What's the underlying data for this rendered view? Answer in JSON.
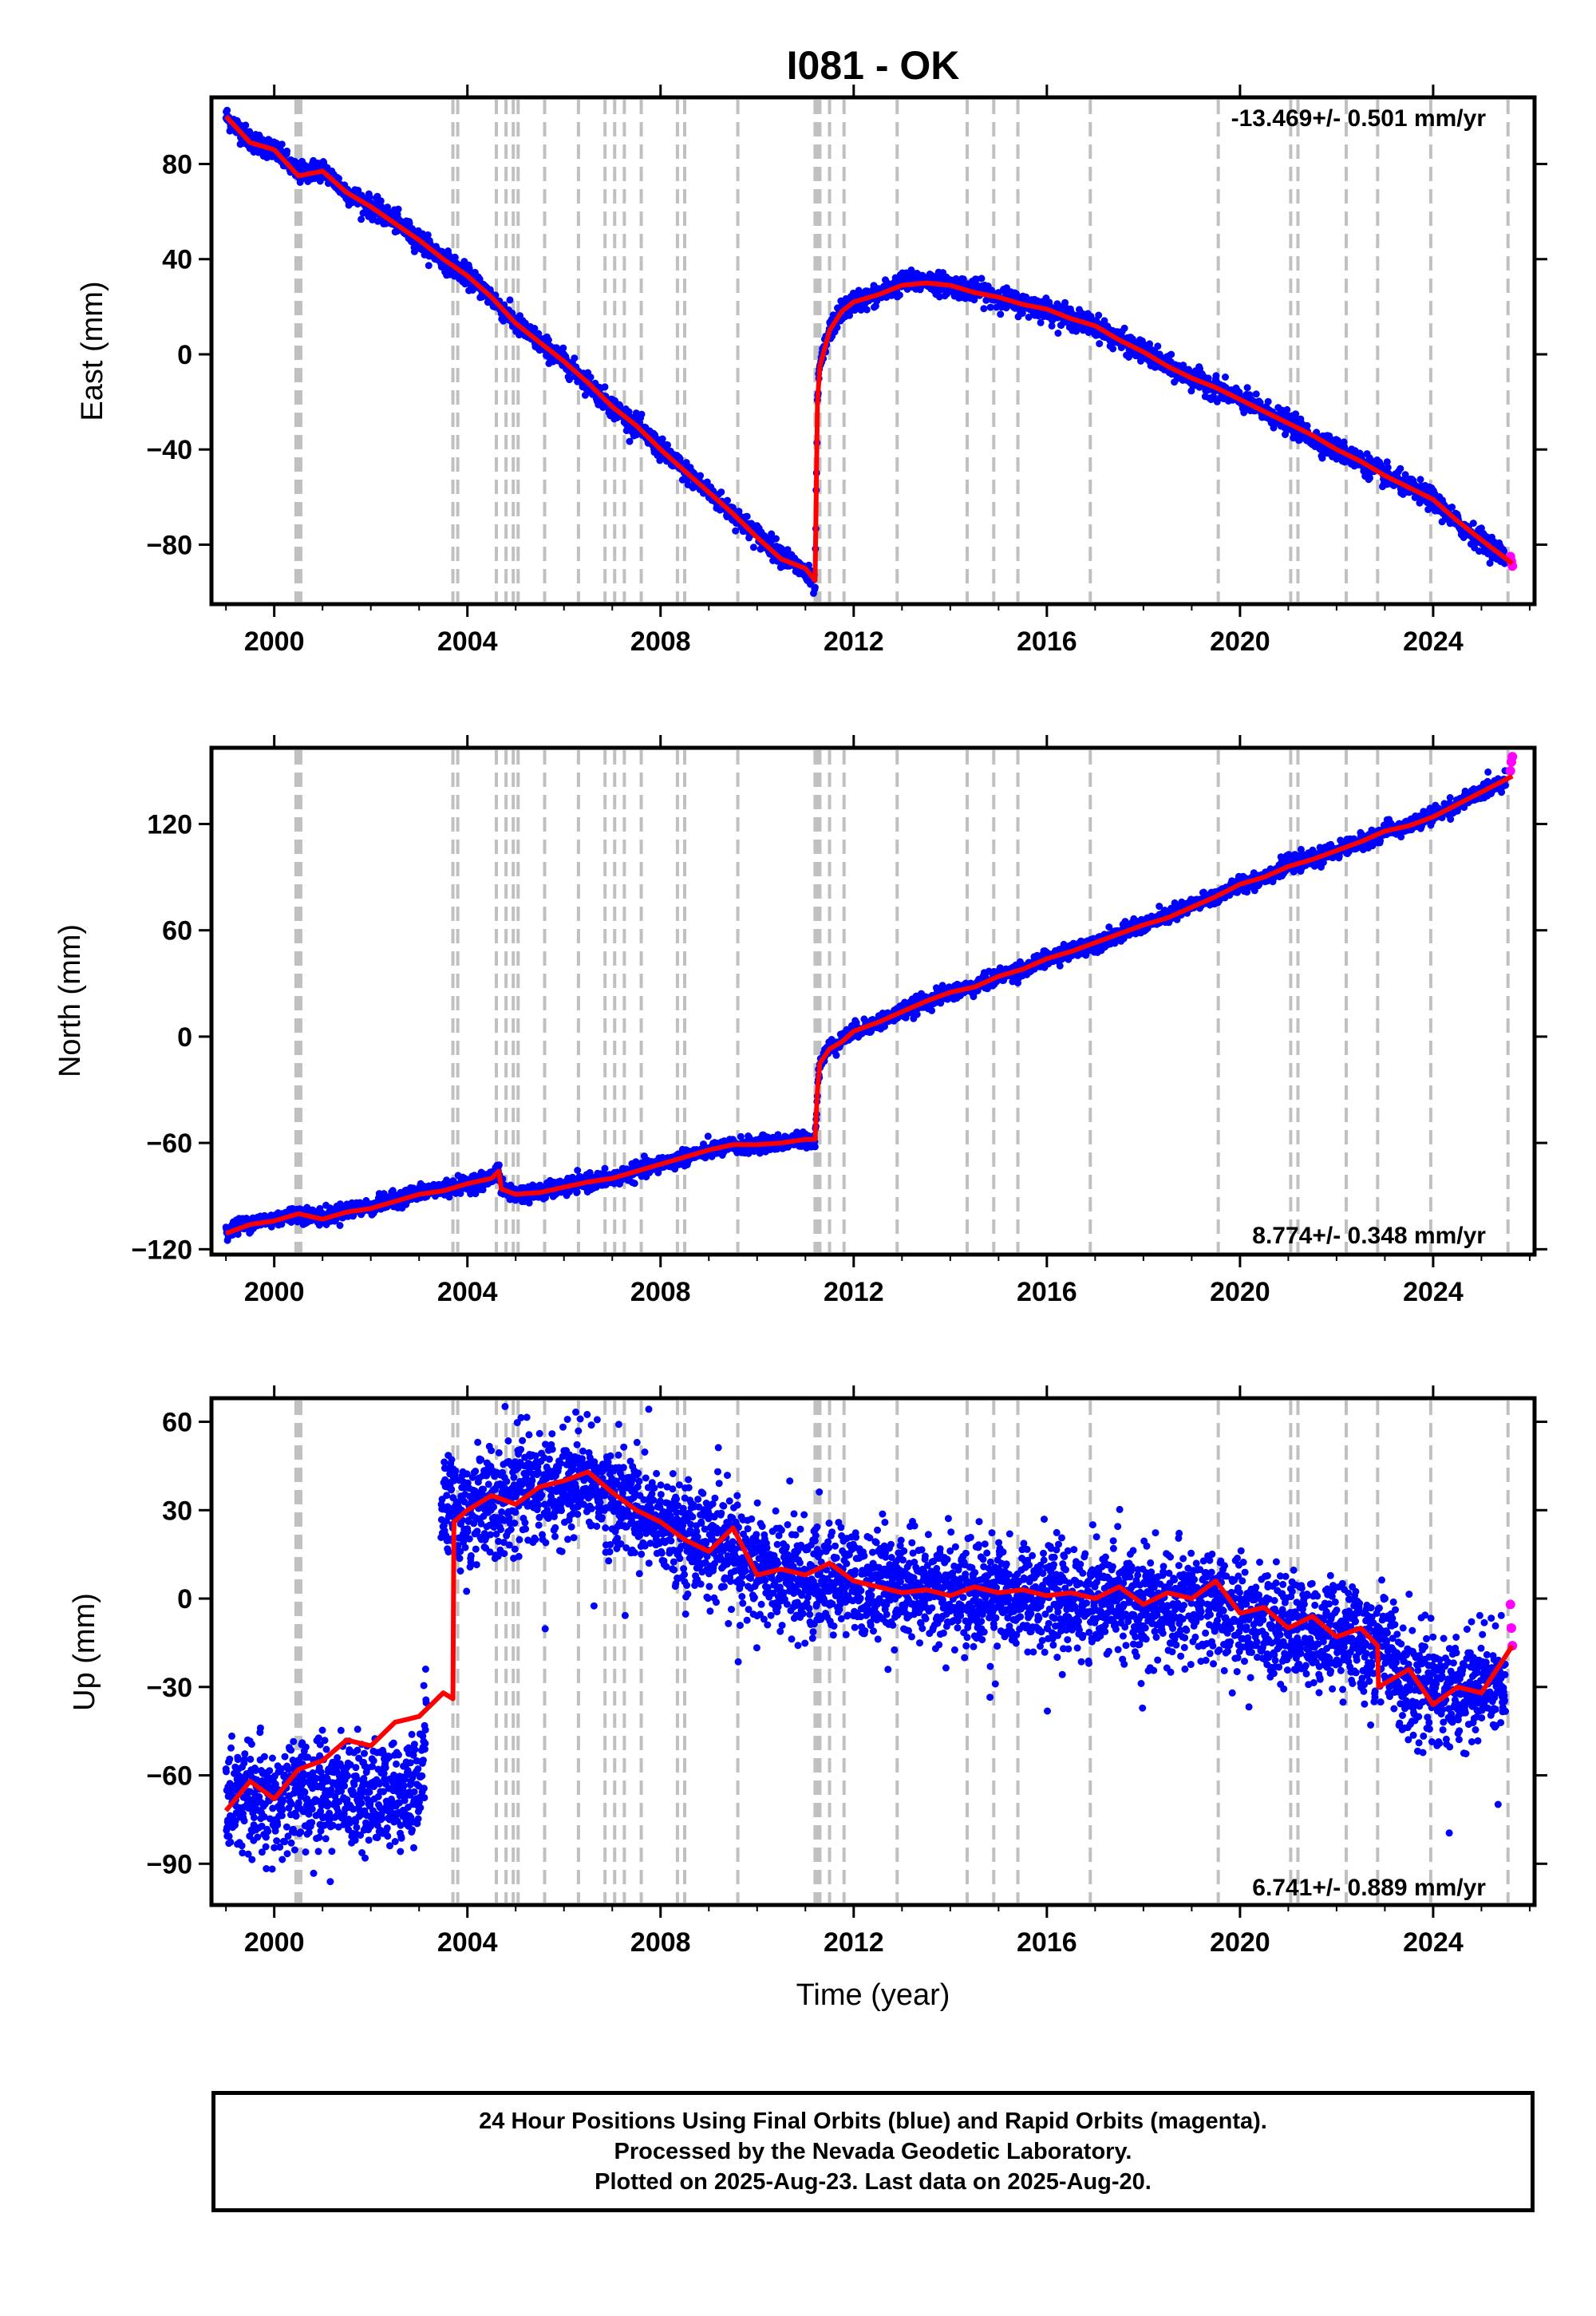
{
  "title": "I081 - OK",
  "xlabel": "Time (year)",
  "footer": {
    "line1": "24 Hour Positions Using Final Orbits (blue) and Rapid Orbits (magenta).",
    "line2": "Processed by the Nevada Geodetic Laboratory.",
    "line3": "Plotted on 2025-Aug-23. Last data on 2025-Aug-20."
  },
  "colors": {
    "final": "#0000ff",
    "rapid": "#ff00ff",
    "model": "#ff0000",
    "steps": "#c0c0c0"
  },
  "chart_data": [
    {
      "type": "scatter",
      "component": "east",
      "ylabel": "East (mm)",
      "rate_label": "-13.469+/- 0.501 mm/yr",
      "rate_position": "top-right",
      "xlim": [
        1998.7,
        2026.1
      ],
      "ylim": [
        -105,
        108
      ],
      "xticks": [
        2000,
        2004,
        2008,
        2012,
        2016,
        2020,
        2024
      ],
      "yticks": [
        -80,
        -40,
        0,
        40,
        80
      ],
      "grid": false,
      "step_lines": [
        2000.45,
        2000.5,
        2000.55,
        2003.7,
        2003.8,
        2004.6,
        2004.8,
        2004.95,
        2005.05,
        2005.6,
        2006.3,
        2006.85,
        2007.05,
        2007.25,
        2007.6,
        2008.35,
        2008.5,
        2009.6,
        2011.2,
        2011.25,
        2011.3,
        2011.5,
        2011.8,
        2012.9,
        2014.35,
        2014.9,
        2015.4,
        2016.9,
        2019.55,
        2021.05,
        2021.2,
        2022.2,
        2022.85,
        2023.95,
        2025.55
      ],
      "series": [
        {
          "name": "final",
          "x": [
            1999.0,
            1999.5,
            2000.0,
            2000.5,
            2001.0,
            2001.5,
            2002.0,
            2002.5,
            2003.0,
            2003.5,
            2004.0,
            2004.5,
            2005.0,
            2005.5,
            2006.0,
            2006.5,
            2007.0,
            2007.5,
            2008.0,
            2008.5,
            2009.0,
            2009.5,
            2010.0,
            2010.5,
            2011.0,
            2011.2,
            2011.25,
            2011.3,
            2011.5,
            2011.75,
            2012.0,
            2012.5,
            2013.0,
            2013.5,
            2014.0,
            2014.5,
            2015.0,
            2015.5,
            2016.0,
            2016.5,
            2017.0,
            2017.5,
            2018.0,
            2018.5,
            2019.0,
            2019.5,
            2020.0,
            2020.5,
            2021.0,
            2021.5,
            2022.0,
            2022.5,
            2023.0,
            2023.5,
            2024.0,
            2024.5,
            2025.0,
            2025.5
          ],
          "y": [
            100,
            90,
            86,
            76,
            78,
            68,
            62,
            56,
            48,
            40,
            33,
            24,
            13,
            5,
            -3,
            -12,
            -22,
            -30,
            -40,
            -49,
            -58,
            -67,
            -76,
            -84,
            -92,
            -97,
            -20,
            -5,
            10,
            18,
            22,
            25,
            30,
            31,
            29,
            27,
            24,
            21,
            19,
            15,
            12,
            6,
            1,
            -5,
            -10,
            -14,
            -19,
            -24,
            -29,
            -35,
            -40,
            -45,
            -51,
            -56,
            -61,
            -71,
            -78,
            -85
          ]
        },
        {
          "name": "rapid",
          "x": [
            2025.6,
            2025.62,
            2025.64
          ],
          "y": [
            -85,
            -87,
            -89
          ]
        },
        {
          "name": "model",
          "x": [
            1999.0,
            1999.5,
            2000.0,
            2000.5,
            2001.0,
            2001.5,
            2002.0,
            2002.5,
            2003.0,
            2003.5,
            2004.0,
            2004.5,
            2005.0,
            2005.5,
            2006.0,
            2006.5,
            2007.0,
            2007.5,
            2008.0,
            2008.5,
            2009.0,
            2009.5,
            2010.0,
            2010.5,
            2011.0,
            2011.2,
            2011.25,
            2011.3,
            2011.5,
            2011.75,
            2012.0,
            2012.5,
            2013.0,
            2013.5,
            2014.0,
            2014.5,
            2015.0,
            2015.5,
            2016.0,
            2016.5,
            2017.0,
            2017.5,
            2018.0,
            2018.5,
            2019.0,
            2019.5,
            2020.0,
            2020.5,
            2021.0,
            2021.5,
            2022.0,
            2022.5,
            2023.0,
            2023.5,
            2024.0,
            2024.5,
            2025.0,
            2025.64
          ],
          "y": [
            100,
            89,
            86,
            75,
            77,
            68,
            62,
            55,
            48,
            40,
            33,
            24,
            13,
            5,
            -3,
            -12,
            -22,
            -30,
            -40,
            -49,
            -58,
            -67,
            -77,
            -86,
            -90,
            -95,
            -20,
            -5,
            10,
            18,
            22,
            25,
            29,
            30,
            29,
            26,
            24,
            21,
            19,
            15,
            12,
            6,
            1,
            -5,
            -10,
            -14,
            -19,
            -24,
            -29,
            -34,
            -40,
            -45,
            -51,
            -56,
            -61,
            -70,
            -78,
            -88
          ]
        }
      ]
    },
    {
      "type": "scatter",
      "component": "north",
      "ylabel": "North (mm)",
      "rate_label": "8.774+/- 0.348 mm/yr",
      "rate_position": "bottom-right",
      "xlim": [
        1998.7,
        2026.1
      ],
      "ylim": [
        -123,
        163
      ],
      "xticks": [
        2000,
        2004,
        2008,
        2012,
        2016,
        2020,
        2024
      ],
      "yticks": [
        -120,
        -60,
        0,
        60,
        120
      ],
      "grid": false,
      "step_lines": [
        2000.45,
        2000.5,
        2000.55,
        2003.7,
        2003.8,
        2004.6,
        2004.8,
        2004.95,
        2005.05,
        2005.6,
        2006.3,
        2006.85,
        2007.05,
        2007.25,
        2007.6,
        2008.35,
        2008.5,
        2009.6,
        2011.2,
        2011.25,
        2011.3,
        2011.5,
        2011.8,
        2012.9,
        2014.35,
        2014.9,
        2015.4,
        2016.9,
        2019.55,
        2021.05,
        2021.2,
        2022.2,
        2022.85,
        2023.95,
        2025.55
      ],
      "series": [
        {
          "name": "final",
          "x": [
            1999.0,
            1999.5,
            2000.0,
            2000.5,
            2001.0,
            2001.5,
            2002.0,
            2002.5,
            2003.0,
            2003.5,
            2004.0,
            2004.5,
            2004.65,
            2004.7,
            2005.0,
            2005.5,
            2006.0,
            2006.5,
            2007.0,
            2007.5,
            2008.0,
            2008.5,
            2009.0,
            2009.5,
            2010.0,
            2010.5,
            2011.0,
            2011.2,
            2011.25,
            2011.3,
            2011.5,
            2011.75,
            2012.0,
            2012.5,
            2013.0,
            2013.5,
            2014.0,
            2014.5,
            2015.0,
            2015.5,
            2016.0,
            2016.5,
            2017.0,
            2017.5,
            2018.0,
            2018.5,
            2019.0,
            2019.5,
            2020.0,
            2020.5,
            2021.0,
            2021.5,
            2022.0,
            2022.5,
            2023.0,
            2023.5,
            2024.0,
            2024.5,
            2025.0,
            2025.5
          ],
          "y": [
            -110,
            -105,
            -103,
            -100,
            -102,
            -98,
            -96,
            -92,
            -88,
            -86,
            -83,
            -80,
            -74,
            -86,
            -89,
            -88,
            -85,
            -82,
            -80,
            -76,
            -72,
            -68,
            -64,
            -62,
            -61,
            -60,
            -58,
            -58,
            -30,
            -15,
            -6,
            -2,
            3,
            8,
            14,
            20,
            25,
            28,
            34,
            38,
            44,
            48,
            53,
            58,
            63,
            68,
            74,
            79,
            86,
            90,
            97,
            100,
            105,
            110,
            116,
            119,
            125,
            131,
            138,
            145
          ]
        },
        {
          "name": "rapid",
          "x": [
            2025.6,
            2025.62,
            2025.64
          ],
          "y": [
            150,
            155,
            158
          ]
        },
        {
          "name": "model",
          "x": [
            1999.0,
            1999.5,
            2000.0,
            2000.5,
            2001.0,
            2001.5,
            2002.0,
            2002.5,
            2003.0,
            2003.5,
            2004.0,
            2004.5,
            2004.65,
            2004.7,
            2005.0,
            2005.5,
            2006.0,
            2006.5,
            2007.0,
            2007.5,
            2008.0,
            2008.5,
            2009.0,
            2009.5,
            2010.0,
            2010.5,
            2011.0,
            2011.2,
            2011.25,
            2011.3,
            2011.5,
            2011.75,
            2012.0,
            2012.5,
            2013.0,
            2013.5,
            2014.0,
            2014.5,
            2015.0,
            2015.5,
            2016.0,
            2016.5,
            2017.0,
            2017.5,
            2018.0,
            2018.5,
            2019.0,
            2019.5,
            2020.0,
            2020.5,
            2021.0,
            2021.5,
            2022.0,
            2022.5,
            2023.0,
            2023.5,
            2024.0,
            2024.5,
            2025.0,
            2025.64
          ],
          "y": [
            -111,
            -106,
            -104,
            -100,
            -103,
            -99,
            -97,
            -93,
            -89,
            -87,
            -83,
            -80,
            -76,
            -86,
            -89,
            -88,
            -85,
            -82,
            -80,
            -76,
            -72,
            -68,
            -64,
            -61,
            -61,
            -60,
            -58,
            -58,
            -30,
            -15,
            -7,
            -3,
            3,
            8,
            14,
            20,
            25,
            28,
            34,
            38,
            44,
            48,
            53,
            58,
            63,
            67,
            73,
            79,
            86,
            90,
            96,
            100,
            105,
            110,
            116,
            119,
            124,
            131,
            138,
            147
          ]
        }
      ]
    },
    {
      "type": "scatter",
      "component": "up",
      "ylabel": "Up (mm)",
      "rate_label": "6.741+/- 0.889 mm/yr",
      "rate_position": "bottom-right",
      "xlim": [
        1998.7,
        2026.1
      ],
      "ylim": [
        -104,
        68
      ],
      "xticks": [
        2000,
        2004,
        2008,
        2012,
        2016,
        2020,
        2024
      ],
      "yticks": [
        -90,
        -60,
        -30,
        0,
        30,
        60
      ],
      "grid": false,
      "step_lines": [
        2000.45,
        2000.5,
        2000.55,
        2003.7,
        2003.8,
        2004.6,
        2004.8,
        2004.95,
        2005.05,
        2005.6,
        2006.3,
        2006.85,
        2007.05,
        2007.25,
        2007.6,
        2008.35,
        2008.5,
        2009.6,
        2011.2,
        2011.25,
        2011.3,
        2011.5,
        2011.8,
        2012.9,
        2014.35,
        2014.9,
        2015.4,
        2016.9,
        2019.55,
        2021.05,
        2021.2,
        2022.2,
        2022.85,
        2023.95,
        2025.55
      ],
      "series": [
        {
          "name": "final",
          "x": [
            1999.0,
            1999.5,
            2000.0,
            2000.5,
            2001.0,
            2001.5,
            2002.0,
            2002.5,
            2003.0,
            2003.5,
            2004.0,
            2004.5,
            2005.0,
            2005.5,
            2006.0,
            2006.5,
            2007.0,
            2007.5,
            2008.0,
            2008.5,
            2009.0,
            2009.5,
            2010.0,
            2010.5,
            2011.0,
            2011.5,
            2012.0,
            2012.5,
            2013.0,
            2013.5,
            2014.0,
            2014.5,
            2015.0,
            2015.5,
            2016.0,
            2016.5,
            2017.0,
            2017.5,
            2018.0,
            2018.5,
            2019.0,
            2019.5,
            2020.0,
            2020.5,
            2021.0,
            2021.5,
            2022.0,
            2022.5,
            2023.0,
            2023.5,
            2024.0,
            2024.5,
            2025.0,
            2025.5
          ],
          "y": [
            -68,
            -66,
            -72,
            -65,
            -67,
            -64,
            -68,
            -66,
            -68,
            30,
            30,
            32,
            35,
            38,
            38,
            40,
            35,
            30,
            25,
            22,
            18,
            15,
            10,
            8,
            7,
            6,
            5,
            4,
            3,
            3,
            2,
            2,
            2,
            1,
            0,
            -1,
            0,
            -1,
            -2,
            -3,
            -2,
            -3,
            -6,
            -8,
            -10,
            -12,
            -14,
            -15,
            -16,
            -30,
            -32,
            -31,
            -30,
            -28
          ]
        },
        {
          "name": "rapid",
          "x": [
            2025.6,
            2025.62,
            2025.64
          ],
          "y": [
            -2,
            -10,
            -16
          ]
        },
        {
          "name": "model",
          "x": [
            1999.0,
            1999.5,
            2000.0,
            2000.5,
            2001.0,
            2001.5,
            2002.0,
            2002.5,
            2003.0,
            2003.5,
            2003.7,
            2003.72,
            2004.0,
            2004.5,
            2005.0,
            2005.5,
            2006.0,
            2006.5,
            2007.0,
            2007.5,
            2008.0,
            2008.5,
            2009.0,
            2009.5,
            2010.0,
            2010.5,
            2011.0,
            2011.5,
            2012.0,
            2012.5,
            2013.0,
            2013.5,
            2014.0,
            2014.5,
            2015.0,
            2015.5,
            2016.0,
            2016.5,
            2017.0,
            2017.5,
            2018.0,
            2018.5,
            2019.0,
            2019.5,
            2020.0,
            2020.5,
            2021.0,
            2021.5,
            2022.0,
            2022.5,
            2022.85,
            2022.87,
            2023.5,
            2024.0,
            2024.5,
            2025.0,
            2025.64
          ],
          "y": [
            -72,
            -62,
            -68,
            -58,
            -55,
            -48,
            -50,
            -42,
            -40,
            -32,
            -34,
            26,
            30,
            35,
            32,
            38,
            40,
            43,
            36,
            30,
            26,
            20,
            16,
            24,
            8,
            10,
            8,
            12,
            6,
            4,
            2,
            3,
            1,
            4,
            2,
            3,
            1,
            2,
            0,
            4,
            -2,
            2,
            0,
            6,
            -5,
            -3,
            -10,
            -6,
            -13,
            -10,
            -16,
            -30,
            -24,
            -36,
            -30,
            -32,
            -16
          ]
        }
      ]
    }
  ]
}
